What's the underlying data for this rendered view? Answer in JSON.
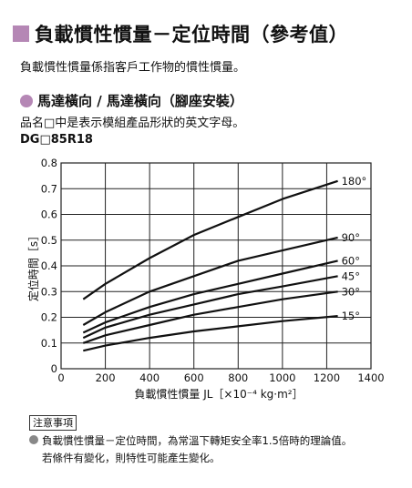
{
  "header": {
    "title": "負載慣性慣量－定位時間（參考值）",
    "description": "負載慣性慣量係指客戶工作物的慣性慣量。"
  },
  "section": {
    "subtitle": "馬達橫向 / 馬達橫向（腳座安裝）",
    "note": "品名□中是表示模組產品形狀的英文字母。",
    "model": "DG□85R18"
  },
  "notice": {
    "label": "注意事項",
    "lines": [
      "負載慣性慣量－定位時間，為常溫下轉矩安全率1.5倍時的理論值。",
      "若條件有變化，則特性可能產生變化。"
    ]
  },
  "chart_data": {
    "type": "line",
    "xlabel": "負載慣性慣量 JL［×10⁻⁴ kg·m²］",
    "ylabel": "定位時間［s］",
    "xlim": [
      0,
      1400
    ],
    "ylim": [
      0,
      0.8
    ],
    "x_ticks": [
      "0",
      "200",
      "400",
      "600",
      "800",
      "1000",
      "1200",
      "1400"
    ],
    "y_ticks": [
      "0",
      "0.1",
      "0.2",
      "0.3",
      "0.4",
      "0.5",
      "0.6",
      "0.7",
      "0.8"
    ],
    "grid": true,
    "series": [
      {
        "name": "180°",
        "x": [
          100,
          200,
          400,
          600,
          800,
          1000,
          1250
        ],
        "y": [
          0.27,
          0.33,
          0.43,
          0.52,
          0.59,
          0.66,
          0.73
        ]
      },
      {
        "name": "90°",
        "x": [
          100,
          200,
          400,
          600,
          800,
          1000,
          1250
        ],
        "y": [
          0.17,
          0.22,
          0.3,
          0.36,
          0.42,
          0.46,
          0.51
        ]
      },
      {
        "name": "60°",
        "x": [
          100,
          200,
          400,
          600,
          800,
          1000,
          1250
        ],
        "y": [
          0.14,
          0.18,
          0.24,
          0.29,
          0.33,
          0.37,
          0.42
        ]
      },
      {
        "name": "45°",
        "x": [
          100,
          200,
          400,
          600,
          800,
          1000,
          1250
        ],
        "y": [
          0.12,
          0.16,
          0.21,
          0.25,
          0.29,
          0.32,
          0.36
        ]
      },
      {
        "name": "30°",
        "x": [
          100,
          200,
          400,
          600,
          800,
          1000,
          1250
        ],
        "y": [
          0.1,
          0.13,
          0.17,
          0.21,
          0.24,
          0.27,
          0.3
        ]
      },
      {
        "name": "15°",
        "x": [
          100,
          200,
          400,
          600,
          800,
          1000,
          1250
        ],
        "y": [
          0.07,
          0.09,
          0.12,
          0.145,
          0.165,
          0.185,
          0.205
        ]
      }
    ]
  }
}
